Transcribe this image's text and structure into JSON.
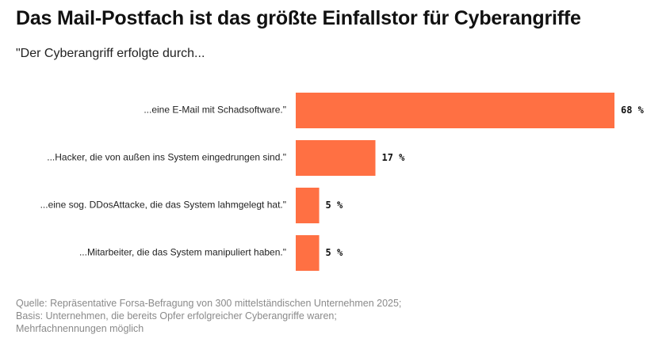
{
  "chart_data": {
    "type": "bar",
    "orientation": "horizontal",
    "title": "Das Mail-Postfach ist das größte Einfallstor für Cyberangriffe",
    "subtitle": "\"Der Cyberangriff erfolgte durch...",
    "categories": [
      "...eine E-Mail mit Schadsoftware.\"",
      "...Hacker, die von außen ins System eingedrungen sind.\"",
      "...eine sog. DDosAttacke, die das System lahmgelegt hat.\"",
      "...Mitarbeiter, die das System manipuliert haben.\""
    ],
    "values": [
      68,
      17,
      5,
      5
    ],
    "value_labels": [
      "68 %",
      "17 %",
      "5 %",
      "5 %"
    ],
    "unit": "%",
    "xlim": [
      0,
      68
    ],
    "grid": false,
    "legend": "none",
    "bar_color": "#FF7043",
    "source": "Quelle: Repräsentative Forsa-Befragung von 300 mittelständischen Unternehmen 2025; Basis: Unternehmen, die bereits Opfer erfolgreicher Cyberangriffe waren; Mehrfachnennungen möglich"
  }
}
